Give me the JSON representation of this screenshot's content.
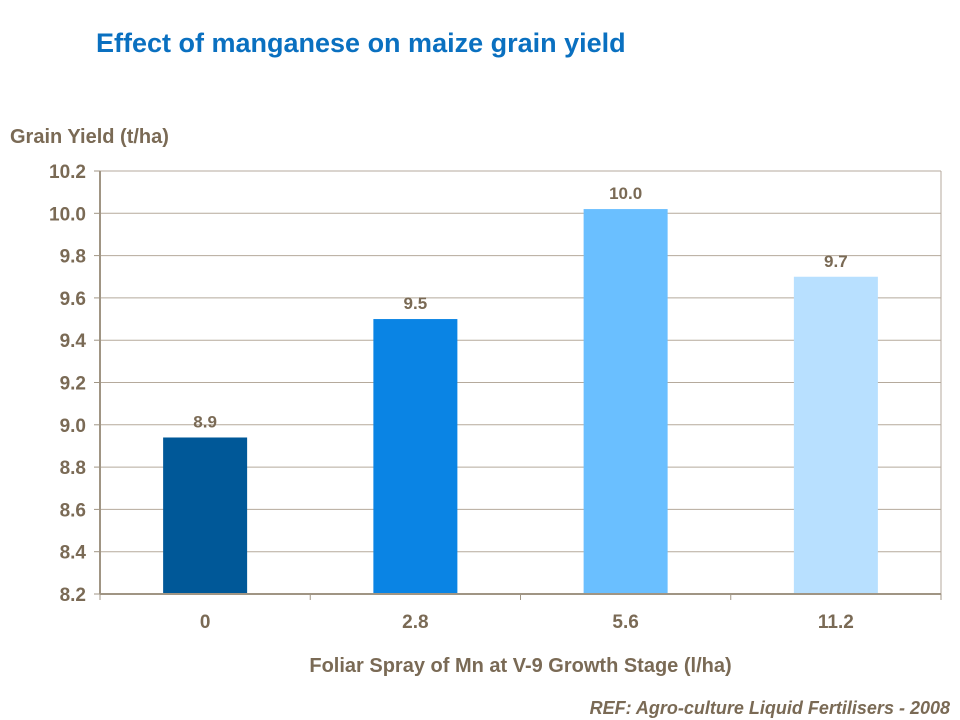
{
  "chart_data": {
    "type": "bar",
    "title": "Effect of manganese on maize grain yield",
    "ylabel": "Grain Yield (t/ha)",
    "xlabel": "Foliar Spray of Mn at V-9 Growth Stage (l/ha)",
    "categories": [
      "0",
      "2.8",
      "5.6",
      "11.2"
    ],
    "values": [
      8.94,
      9.5,
      10.02,
      9.7
    ],
    "data_labels": [
      "8.9",
      "9.5",
      "10.0",
      "9.7"
    ],
    "bar_colors": [
      "#005898",
      "#0a84e4",
      "#6abfff",
      "#b8e0ff"
    ],
    "ylim": [
      8.2,
      10.2
    ],
    "yticks": [
      "8.2",
      "8.4",
      "8.6",
      "8.8",
      "9.0",
      "9.2",
      "9.4",
      "9.6",
      "9.8",
      "10.0",
      "10.2"
    ],
    "grid": true,
    "legend": "none"
  },
  "reference": "REF: Agro-culture Liquid Fertilisers - 2008"
}
